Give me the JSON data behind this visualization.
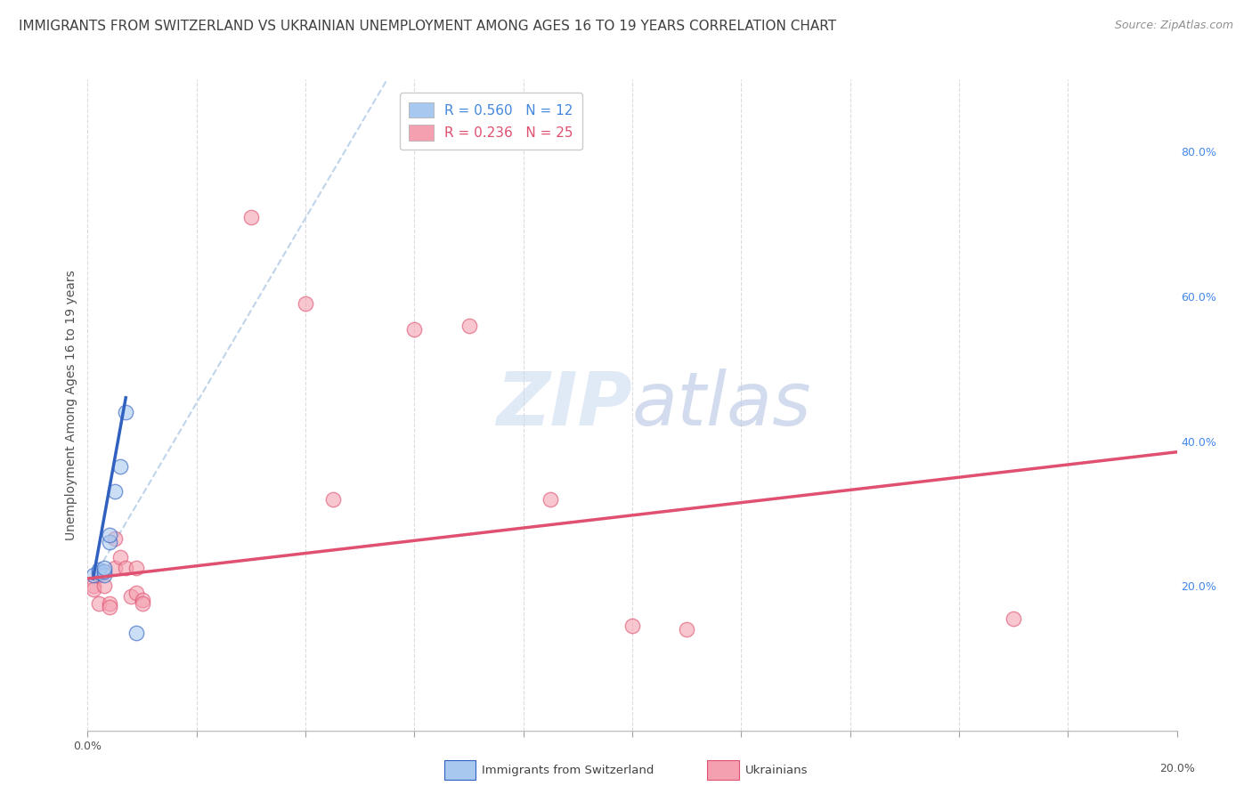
{
  "title": "IMMIGRANTS FROM SWITZERLAND VS UKRAINIAN UNEMPLOYMENT AMONG AGES 16 TO 19 YEARS CORRELATION CHART",
  "source": "Source: ZipAtlas.com",
  "ylabel": "Unemployment Among Ages 16 to 19 years",
  "watermark_zip": "ZIP",
  "watermark_atlas": "atlas",
  "legend": [
    {
      "label": "R = 0.560   N = 12",
      "color": "#a8c8f0"
    },
    {
      "label": "R = 0.236   N = 25",
      "color": "#f4a0b0"
    }
  ],
  "xlim": [
    0.0,
    0.2
  ],
  "ylim": [
    0.0,
    0.9
  ],
  "xticks": [
    0.0,
    0.02,
    0.04,
    0.06,
    0.08,
    0.1,
    0.12,
    0.14,
    0.16,
    0.18,
    0.2
  ],
  "yticks_right": [
    0.0,
    0.2,
    0.4,
    0.6,
    0.8
  ],
  "blue_scatter": [
    [
      0.001,
      0.215
    ],
    [
      0.002,
      0.218
    ],
    [
      0.002,
      0.222
    ],
    [
      0.003,
      0.215
    ],
    [
      0.003,
      0.22
    ],
    [
      0.003,
      0.225
    ],
    [
      0.004,
      0.26
    ],
    [
      0.004,
      0.27
    ],
    [
      0.005,
      0.33
    ],
    [
      0.006,
      0.365
    ],
    [
      0.007,
      0.44
    ],
    [
      0.009,
      0.135
    ]
  ],
  "pink_scatter": [
    [
      0.001,
      0.2
    ],
    [
      0.001,
      0.195
    ],
    [
      0.002,
      0.175
    ],
    [
      0.002,
      0.215
    ],
    [
      0.003,
      0.2
    ],
    [
      0.004,
      0.175
    ],
    [
      0.004,
      0.17
    ],
    [
      0.005,
      0.225
    ],
    [
      0.005,
      0.265
    ],
    [
      0.006,
      0.24
    ],
    [
      0.007,
      0.225
    ],
    [
      0.008,
      0.185
    ],
    [
      0.009,
      0.225
    ],
    [
      0.009,
      0.19
    ],
    [
      0.01,
      0.18
    ],
    [
      0.01,
      0.175
    ],
    [
      0.03,
      0.71
    ],
    [
      0.04,
      0.59
    ],
    [
      0.045,
      0.32
    ],
    [
      0.06,
      0.555
    ],
    [
      0.07,
      0.56
    ],
    [
      0.085,
      0.32
    ],
    [
      0.1,
      0.145
    ],
    [
      0.11,
      0.14
    ],
    [
      0.17,
      0.155
    ]
  ],
  "blue_line_solid": [
    [
      0.001,
      0.21
    ],
    [
      0.007,
      0.46
    ]
  ],
  "blue_line_dash": [
    [
      0.001,
      0.21
    ],
    [
      0.055,
      0.9
    ]
  ],
  "pink_line": [
    [
      0.0,
      0.21
    ],
    [
      0.2,
      0.385
    ]
  ],
  "scatter_color_blue": "#a8c8f0",
  "scatter_color_pink": "#f4a0b0",
  "line_color_blue": "#3060c0",
  "line_color_dash": "#b8d0e8",
  "line_color_pink": "#e05070",
  "background_color": "#ffffff",
  "grid_color": "#d8d8d8",
  "title_fontsize": 11,
  "source_fontsize": 9,
  "axis_label_fontsize": 10,
  "tick_fontsize": 9,
  "legend_fontsize": 11,
  "watermark_color_zip": "#c8d8f0",
  "watermark_color_atlas": "#b0c4e8",
  "watermark_fontsize": 60,
  "scatter_size": 140,
  "scatter_alpha": 0.6,
  "legend_box_color_blue": "#a8c8f0",
  "legend_box_color_pink": "#f4a0b0",
  "legend_text_color_blue": "#4488dd",
  "legend_text_color_pink": "#e05070"
}
